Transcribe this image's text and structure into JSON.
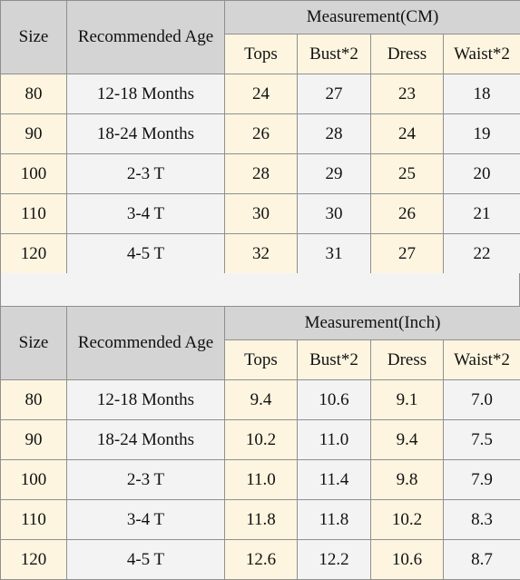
{
  "columns": {
    "size": "Size",
    "age": "Recommended Age",
    "tops": "Tops",
    "bust": "Bust*2",
    "dress": "Dress",
    "waist": "Waist*2"
  },
  "tables": [
    {
      "measurement_title": "Measurement(CM)",
      "rows": [
        {
          "size": "80",
          "age": "12-18 Months",
          "tops": "24",
          "bust": "27",
          "dress": "23",
          "waist": "18"
        },
        {
          "size": "90",
          "age": "18-24 Months",
          "tops": "26",
          "bust": "28",
          "dress": "24",
          "waist": "19"
        },
        {
          "size": "100",
          "age": "2-3 T",
          "tops": "28",
          "bust": "29",
          "dress": "25",
          "waist": "20"
        },
        {
          "size": "110",
          "age": "3-4 T",
          "tops": "30",
          "bust": "30",
          "dress": "26",
          "waist": "21"
        },
        {
          "size": "120",
          "age": "4-5 T",
          "tops": "32",
          "bust": "31",
          "dress": "27",
          "waist": "22"
        }
      ]
    },
    {
      "measurement_title": "Measurement(Inch)",
      "rows": [
        {
          "size": "80",
          "age": "12-18 Months",
          "tops": "9.4",
          "bust": "10.6",
          "dress": "9.1",
          "waist": "7.0"
        },
        {
          "size": "90",
          "age": "18-24 Months",
          "tops": "10.2",
          "bust": "11.0",
          "dress": "9.4",
          "waist": "7.5"
        },
        {
          "size": "100",
          "age": "2-3 T",
          "tops": "11.0",
          "bust": "11.4",
          "dress": "9.8",
          "waist": "7.9"
        },
        {
          "size": "110",
          "age": "3-4 T",
          "tops": "11.8",
          "bust": "11.8",
          "dress": "10.2",
          "waist": "8.3"
        },
        {
          "size": "120",
          "age": "4-5 T",
          "tops": "12.6",
          "bust": "12.2",
          "dress": "10.6",
          "waist": "8.7"
        }
      ]
    }
  ],
  "colors": {
    "header_gray": "#d4d4d4",
    "cream": "#fdf5e0",
    "light_gray": "#f3f3f3",
    "border": "#8f8f8f"
  }
}
